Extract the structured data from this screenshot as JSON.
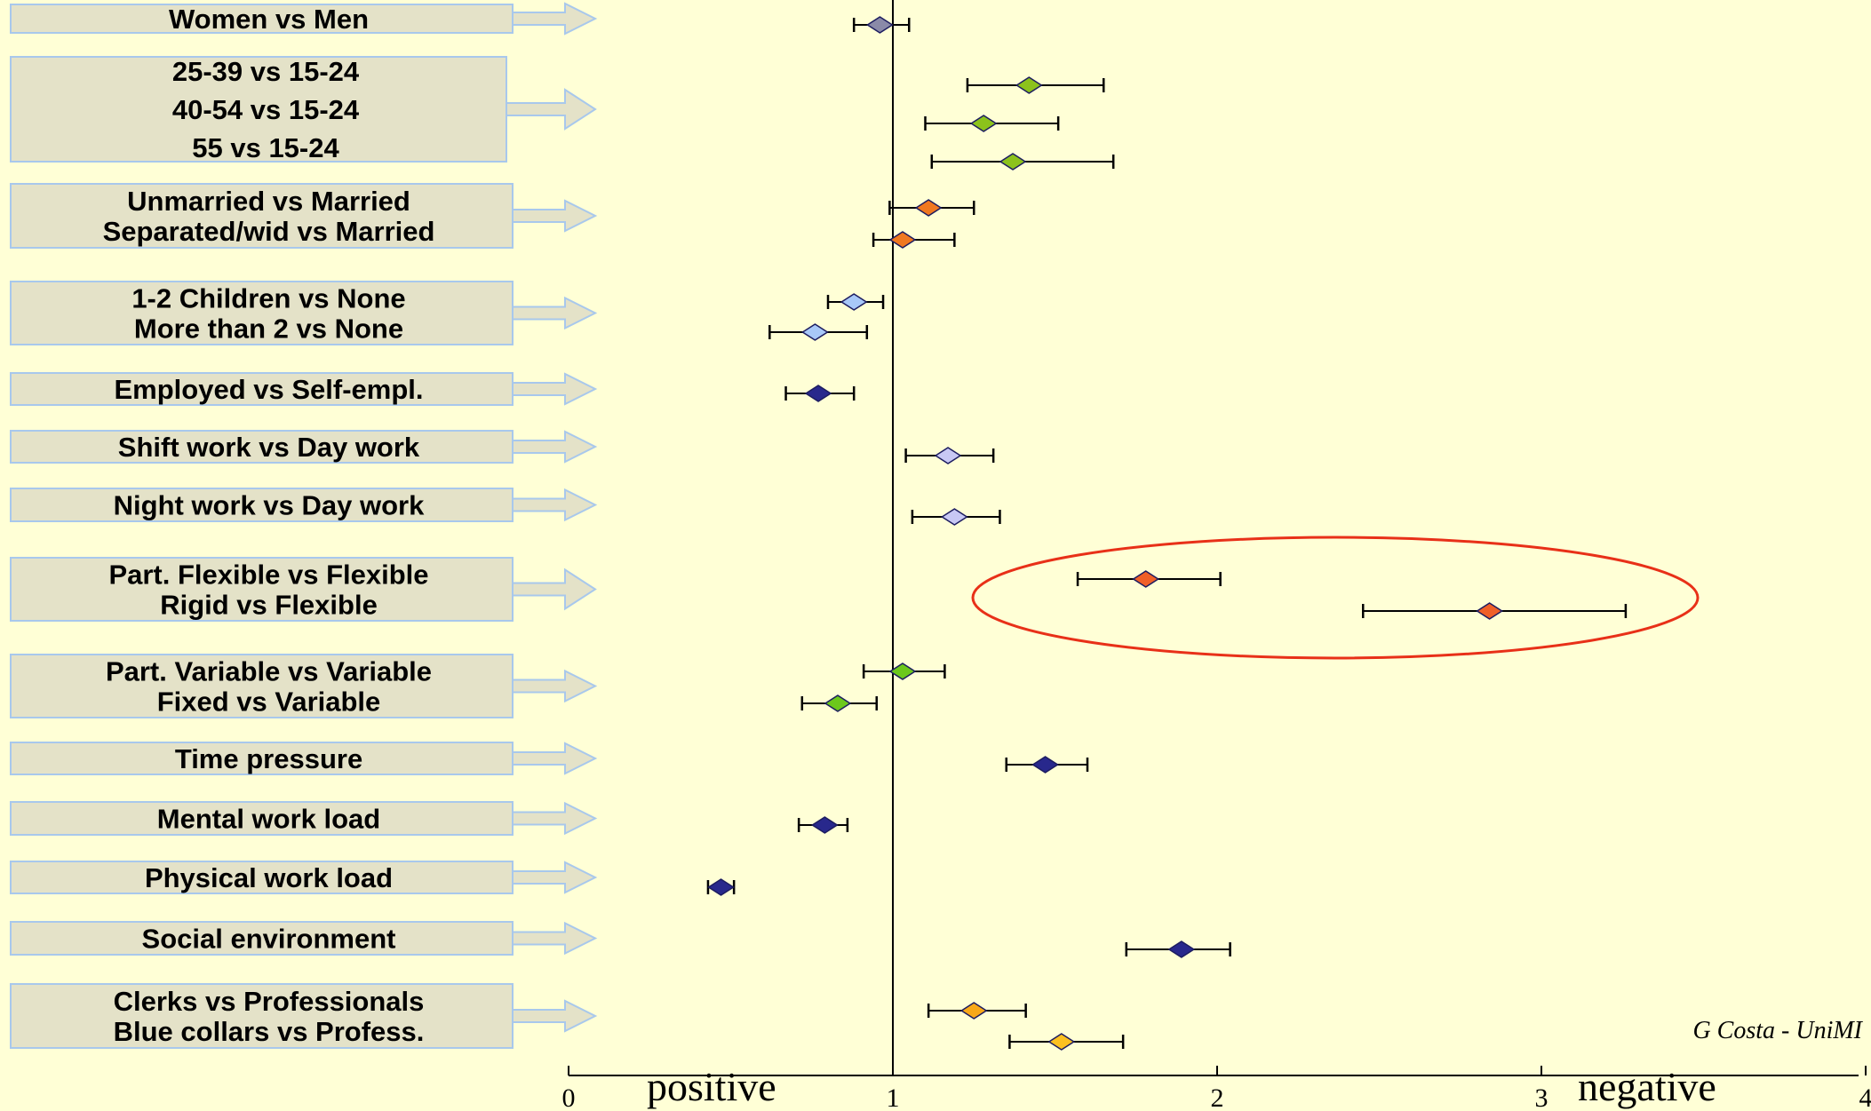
{
  "chart_data": {
    "type": "scatter",
    "subtype": "forest-plot",
    "xlim": [
      0,
      4
    ],
    "x_ticks": [
      "0",
      "1",
      "2",
      "3",
      "4"
    ],
    "reference_line": 1,
    "axis_texts": {
      "left": "positive",
      "right": "negative"
    },
    "credit": "G Costa - UniMI",
    "groups": [
      {
        "labels": [
          "Women vs Men"
        ],
        "points": [
          {
            "value": 0.96,
            "low": 0.88,
            "high": 1.05,
            "color": "#8a8aa8"
          }
        ]
      },
      {
        "labels": [
          "25-39 vs 15-24",
          "40-54 vs 15-24",
          "55 vs 15-24"
        ],
        "points": [
          {
            "value": 1.42,
            "low": 1.23,
            "high": 1.65,
            "color": "#8cc21c"
          },
          {
            "value": 1.28,
            "low": 1.1,
            "high": 1.51,
            "color": "#8cc21c"
          },
          {
            "value": 1.37,
            "low": 1.12,
            "high": 1.68,
            "color": "#8cc21c"
          }
        ]
      },
      {
        "labels": [
          "Unmarried vs Married",
          "Separated/wid vs Married"
        ],
        "points": [
          {
            "value": 1.11,
            "low": 0.99,
            "high": 1.25,
            "color": "#f07820"
          },
          {
            "value": 1.03,
            "low": 0.94,
            "high": 1.19,
            "color": "#f07820"
          }
        ]
      },
      {
        "labels": [
          "1-2 Children vs None",
          "More than 2 vs None"
        ],
        "points": [
          {
            "value": 0.88,
            "low": 0.8,
            "high": 0.97,
            "color": "#a8c8f8"
          },
          {
            "value": 0.76,
            "low": 0.62,
            "high": 0.92,
            "color": "#a8c8f8"
          }
        ]
      },
      {
        "labels": [
          "Employed vs Self-empl."
        ],
        "points": [
          {
            "value": 0.77,
            "low": 0.67,
            "high": 0.88,
            "color": "#28288c"
          }
        ]
      },
      {
        "labels": [
          "Shift work vs Day work"
        ],
        "points": [
          {
            "value": 1.17,
            "low": 1.04,
            "high": 1.31,
            "color": "#c8c8f4"
          }
        ]
      },
      {
        "labels": [
          "Night work vs Day work"
        ],
        "points": [
          {
            "value": 1.19,
            "low": 1.06,
            "high": 1.33,
            "color": "#c8c8f4"
          }
        ]
      },
      {
        "labels": [
          "Part. Flexible vs Flexible",
          "Rigid  vs Flexible"
        ],
        "points": [
          {
            "value": 1.78,
            "low": 1.57,
            "high": 2.01,
            "color": "#f06028"
          },
          {
            "value": 2.84,
            "low": 2.45,
            "high": 3.26,
            "color": "#f06028"
          }
        ]
      },
      {
        "labels": [
          "Part. Variable vs Variable",
          "Fixed  vs Variable"
        ],
        "points": [
          {
            "value": 1.03,
            "low": 0.91,
            "high": 1.16,
            "color": "#6cc81c"
          },
          {
            "value": 0.83,
            "low": 0.72,
            "high": 0.95,
            "color": "#6cc81c"
          }
        ]
      },
      {
        "labels": [
          "Time pressure"
        ],
        "points": [
          {
            "value": 1.47,
            "low": 1.35,
            "high": 1.6,
            "color": "#28288c"
          }
        ]
      },
      {
        "labels": [
          "Mental work load"
        ],
        "points": [
          {
            "value": 0.79,
            "low": 0.71,
            "high": 0.86,
            "color": "#28288c"
          }
        ]
      },
      {
        "labels": [
          "Physical work load"
        ],
        "points": [
          {
            "value": 0.47,
            "low": 0.43,
            "high": 0.51,
            "color": "#28288c"
          }
        ]
      },
      {
        "labels": [
          "Social environment"
        ],
        "points": [
          {
            "value": 1.89,
            "low": 1.72,
            "high": 2.04,
            "color": "#28288c"
          }
        ]
      },
      {
        "labels": [
          "Clerks vs Professionals",
          "Blue collars vs Profess."
        ],
        "points": [
          {
            "value": 1.25,
            "low": 1.11,
            "high": 1.41,
            "color": "#f8a818"
          },
          {
            "value": 1.52,
            "low": 1.36,
            "high": 1.71,
            "color": "#fcc020"
          }
        ]
      }
    ],
    "highlight": {
      "group_index": 7,
      "color": "#e83018"
    }
  }
}
